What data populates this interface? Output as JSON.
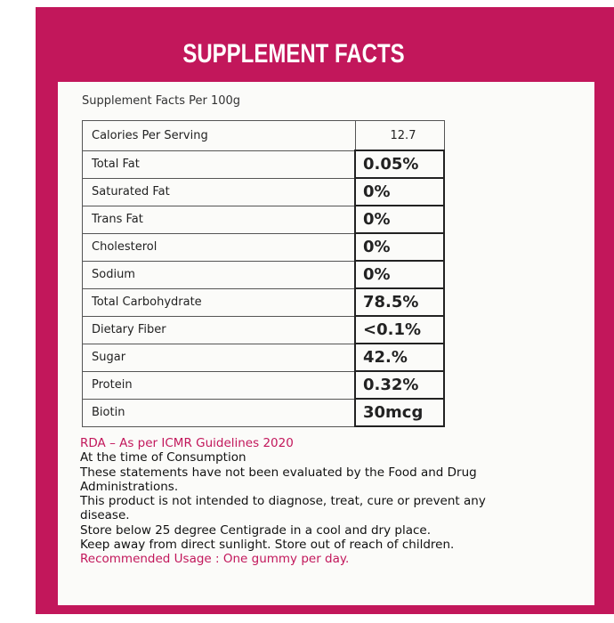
{
  "title": "SUPPLEMENT FACTS",
  "table": {
    "caption": "Supplement Facts Per 100g",
    "rows": [
      [
        "Calories Per Serving",
        "12.7"
      ],
      [
        "Total Fat",
        "0.05%"
      ],
      [
        "Saturated Fat",
        "0%"
      ],
      [
        "Trans Fat",
        "0%"
      ],
      [
        "Cholesterol",
        "0%"
      ],
      [
        "Sodium",
        "0%"
      ],
      [
        "Total Carbohydrate",
        "78.5%"
      ],
      [
        "Dietary Fiber",
        "<0.1%"
      ],
      [
        "Sugar",
        "42.%"
      ],
      [
        "Protein",
        "0.32%"
      ],
      [
        "Biotin",
        "30mcg"
      ]
    ]
  },
  "notes": {
    "rda": "RDA – As per ICMR Guidelines 2020",
    "lines": [
      "At the time of Consumption",
      "These statements have not been evaluated by the Food and Drug",
      "Administrations.",
      "This product is not intended to diagnose, treat, cure or prevent any",
      "disease.",
      "Store below 25 degree Centigrade in a cool and dry place.",
      "Keep away from direct sunlight. Store out of reach of children."
    ],
    "usage": "Recommended Usage : One gummy per day."
  }
}
